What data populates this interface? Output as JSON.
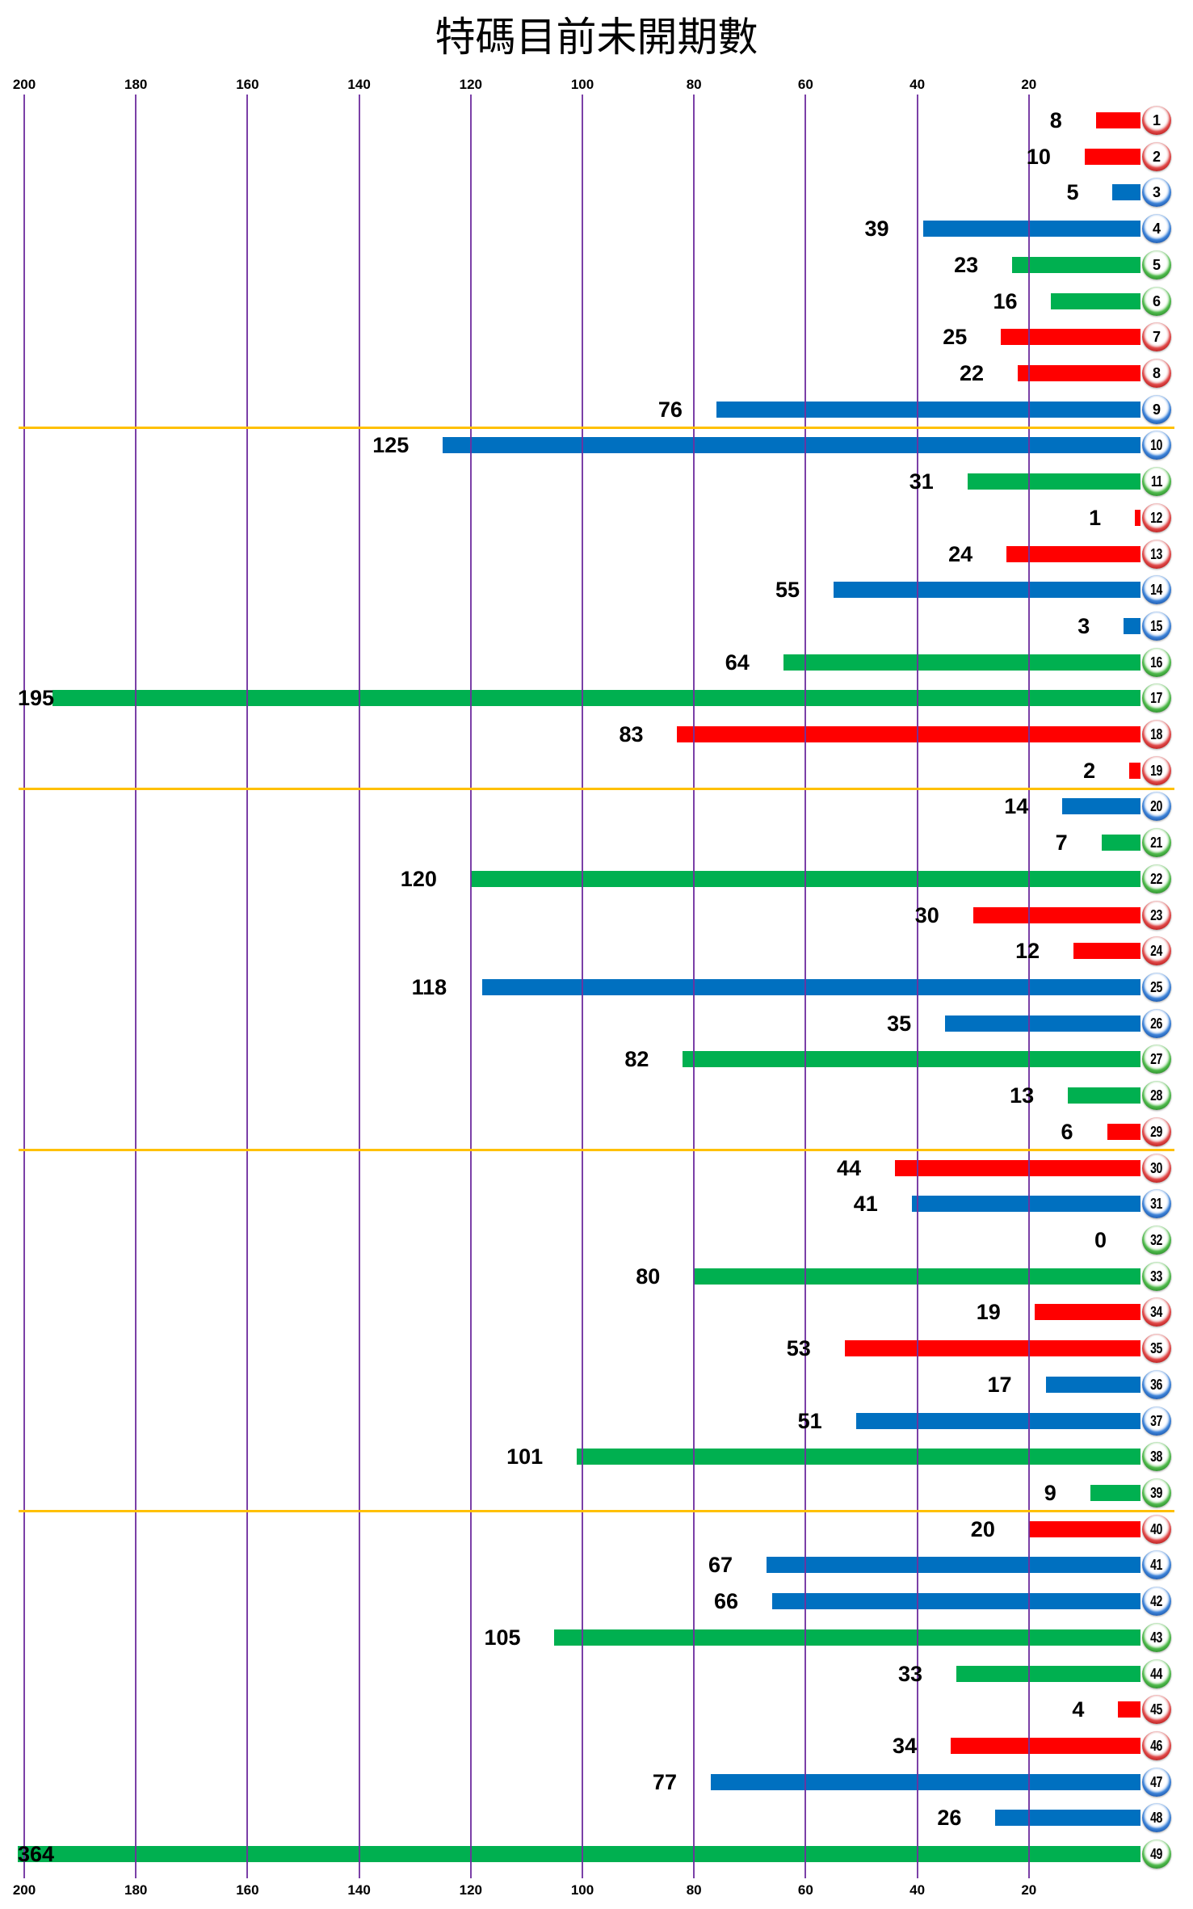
{
  "chart_data": {
    "type": "bar",
    "orientation": "horizontal",
    "title": "特碼目前未開期數",
    "xlabel": "",
    "ylabel": "",
    "xlim": [
      0,
      200
    ],
    "x_reversed": true,
    "xticks": [
      200,
      180,
      160,
      140,
      120,
      100,
      80,
      60,
      40,
      20
    ],
    "xtick_labels": [
      "200",
      "180",
      "160",
      "140",
      "120",
      "100",
      "80",
      "60",
      "40",
      "20"
    ],
    "xaxis_label_positions": [
      "top",
      "bottom"
    ],
    "grid": true,
    "legend": null,
    "categories": [
      "1",
      "2",
      "3",
      "4",
      "5",
      "6",
      "7",
      "8",
      "9",
      "10",
      "11",
      "12",
      "13",
      "14",
      "15",
      "16",
      "17",
      "18",
      "19",
      "20",
      "21",
      "22",
      "23",
      "24",
      "25",
      "26",
      "27",
      "28",
      "29",
      "30",
      "31",
      "32",
      "33",
      "34",
      "35",
      "36",
      "37",
      "38",
      "39",
      "40",
      "41",
      "42",
      "43",
      "44",
      "45",
      "46",
      "47",
      "48",
      "49"
    ],
    "values": [
      8,
      10,
      5,
      39,
      23,
      16,
      25,
      22,
      76,
      125,
      31,
      1,
      24,
      55,
      3,
      64,
      195,
      83,
      2,
      14,
      7,
      120,
      30,
      12,
      118,
      35,
      82,
      13,
      6,
      44,
      41,
      0,
      80,
      19,
      53,
      17,
      51,
      101,
      9,
      20,
      67,
      66,
      105,
      33,
      4,
      34,
      77,
      26,
      364
    ],
    "category_colors": [
      "red",
      "red",
      "blue",
      "blue",
      "green",
      "green",
      "red",
      "red",
      "blue",
      "blue",
      "green",
      "red",
      "red",
      "blue",
      "blue",
      "green",
      "green",
      "red",
      "red",
      "blue",
      "green",
      "green",
      "red",
      "red",
      "blue",
      "blue",
      "green",
      "green",
      "red",
      "red",
      "blue",
      "green",
      "green",
      "red",
      "red",
      "blue",
      "blue",
      "green",
      "green",
      "red",
      "blue",
      "blue",
      "green",
      "green",
      "red",
      "red",
      "blue",
      "blue",
      "green"
    ],
    "group_separators_after": [
      9,
      19,
      29,
      39
    ],
    "palette": {
      "red": "#FF0000",
      "blue": "#0070C0",
      "green": "#00B050",
      "gridline": "#7030A0",
      "separator": "#FFC000"
    }
  }
}
